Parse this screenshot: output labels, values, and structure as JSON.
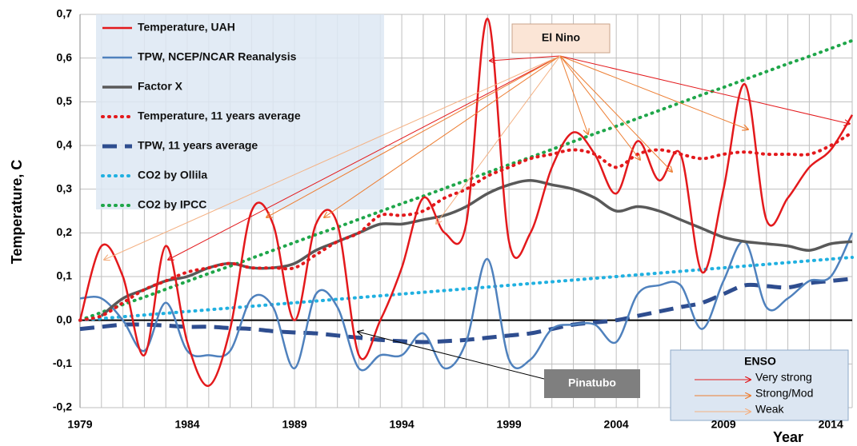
{
  "chart_data": {
    "type": "line",
    "y_label": "Temperature, C",
    "x_label": "Year",
    "x": [
      1979,
      1980,
      1981,
      1982,
      1983,
      1984,
      1985,
      1986,
      1987,
      1988,
      1989,
      1990,
      1991,
      1992,
      1993,
      1994,
      1995,
      1996,
      1997,
      1998,
      1999,
      2000,
      2001,
      2002,
      2003,
      2004,
      2005,
      2006,
      2007,
      2008,
      2009,
      2010,
      2011,
      2012,
      2013,
      2014,
      2015
    ],
    "xlim": [
      1979,
      2015
    ],
    "xticks": [
      1979,
      1984,
      1989,
      1994,
      1999,
      2004,
      2009,
      2014
    ],
    "ylim": [
      -0.2,
      0.7
    ],
    "yticks": [
      {
        "value": -0.2,
        "label": "-0,2"
      },
      {
        "value": -0.1,
        "label": "-0,1"
      },
      {
        "value": 0,
        "label": "0,0"
      },
      {
        "value": 0.1,
        "label": "0,1"
      },
      {
        "value": 0.2,
        "label": "0,2"
      },
      {
        "value": 0.3,
        "label": "0,3"
      },
      {
        "value": 0.4,
        "label": "0,4"
      },
      {
        "value": 0.5,
        "label": "0,5"
      },
      {
        "value": 0.6,
        "label": "0,6"
      },
      {
        "value": 0.7,
        "label": "0,7"
      }
    ],
    "grid": true,
    "legend": "upper left",
    "series": [
      {
        "name": "Temperature, UAH",
        "color": "#e3191c",
        "style": "solid",
        "values": [
          0.0,
          0.17,
          0.1,
          -0.08,
          0.17,
          -0.05,
          -0.15,
          -0.02,
          0.25,
          0.22,
          0.0,
          0.22,
          0.22,
          -0.08,
          0.0,
          0.12,
          0.28,
          0.2,
          0.22,
          0.69,
          0.18,
          0.2,
          0.35,
          0.43,
          0.38,
          0.29,
          0.41,
          0.32,
          0.38,
          0.11,
          0.3,
          0.54,
          0.23,
          0.28,
          0.35,
          0.39,
          0.47
        ]
      },
      {
        "name": "TPW, NCEP/NCAR Reanalysis",
        "color": "#4f81bd",
        "style": "solid",
        "values": [
          0.05,
          0.05,
          0.0,
          -0.07,
          0.04,
          -0.07,
          -0.08,
          -0.07,
          0.05,
          0.03,
          -0.11,
          0.06,
          0.03,
          -0.11,
          -0.08,
          -0.08,
          -0.03,
          -0.11,
          -0.05,
          0.14,
          -0.09,
          -0.09,
          -0.02,
          -0.01,
          -0.01,
          -0.05,
          0.06,
          0.08,
          0.08,
          -0.02,
          0.09,
          0.18,
          0.03,
          0.05,
          0.09,
          0.1,
          0.2
        ]
      },
      {
        "name": "Factor X",
        "color": "#595959",
        "style": "solid",
        "values": [
          null,
          0.01,
          0.05,
          0.07,
          0.09,
          0.1,
          0.12,
          0.13,
          0.12,
          0.12,
          0.13,
          0.16,
          0.18,
          0.2,
          0.22,
          0.22,
          0.23,
          0.24,
          0.26,
          0.29,
          0.31,
          0.32,
          0.31,
          0.3,
          0.28,
          0.25,
          0.26,
          0.25,
          0.23,
          0.21,
          0.19,
          0.18,
          0.175,
          0.17,
          0.16,
          0.175,
          0.18
        ]
      },
      {
        "name": "Temperature, 11 years average",
        "color": "#e3191c",
        "style": "dotted",
        "values": [
          0.0,
          0.01,
          0.04,
          0.07,
          0.09,
          0.11,
          0.12,
          0.13,
          0.12,
          0.12,
          0.12,
          0.15,
          0.18,
          0.2,
          0.24,
          0.24,
          0.25,
          0.28,
          0.3,
          0.33,
          0.35,
          0.37,
          0.38,
          0.39,
          0.38,
          0.35,
          0.38,
          0.39,
          0.38,
          0.37,
          0.38,
          0.385,
          0.38,
          0.38,
          0.38,
          0.4,
          0.43
        ]
      },
      {
        "name": "TPW, 11 years average",
        "color": "#2e4d8f",
        "style": "dashed",
        "values": [
          -0.02,
          -0.015,
          -0.01,
          -0.01,
          -0.012,
          -0.015,
          -0.015,
          -0.018,
          -0.02,
          -0.025,
          -0.028,
          -0.03,
          -0.035,
          -0.04,
          -0.045,
          -0.048,
          -0.05,
          -0.048,
          -0.045,
          -0.04,
          -0.035,
          -0.03,
          -0.02,
          -0.01,
          -0.005,
          0.0,
          0.01,
          0.02,
          0.03,
          0.04,
          0.06,
          0.08,
          0.078,
          0.075,
          0.085,
          0.09,
          0.095
        ]
      },
      {
        "name": "CO2 by Ollila",
        "color": "#20b0e0",
        "style": "dotted",
        "values": [
          0.0,
          0.004,
          0.008,
          0.012,
          0.016,
          0.02,
          0.024,
          0.028,
          0.032,
          0.036,
          0.04,
          0.044,
          0.048,
          0.052,
          0.056,
          0.06,
          0.064,
          0.068,
          0.072,
          0.076,
          0.08,
          0.084,
          0.088,
          0.092,
          0.096,
          0.1,
          0.104,
          0.108,
          0.112,
          0.116,
          0.12,
          0.124,
          0.128,
          0.132,
          0.136,
          0.14,
          0.144
        ]
      },
      {
        "name": "CO2 by IPCC",
        "color": "#1fa64a",
        "style": "dotted",
        "values": [
          0.0,
          0.018,
          0.036,
          0.053,
          0.071,
          0.089,
          0.107,
          0.124,
          0.142,
          0.16,
          0.178,
          0.196,
          0.213,
          0.231,
          0.249,
          0.267,
          0.284,
          0.302,
          0.32,
          0.338,
          0.356,
          0.373,
          0.391,
          0.409,
          0.427,
          0.444,
          0.462,
          0.48,
          0.498,
          0.516,
          0.533,
          0.551,
          0.569,
          0.587,
          0.604,
          0.622,
          0.64
        ]
      }
    ],
    "annotations": {
      "el_nino": "El Nino",
      "pinatubo": "Pinatubo",
      "enso": {
        "title": "ENSO",
        "items": [
          "Very strong",
          "Strong/Mod",
          "Weak"
        ]
      }
    }
  }
}
